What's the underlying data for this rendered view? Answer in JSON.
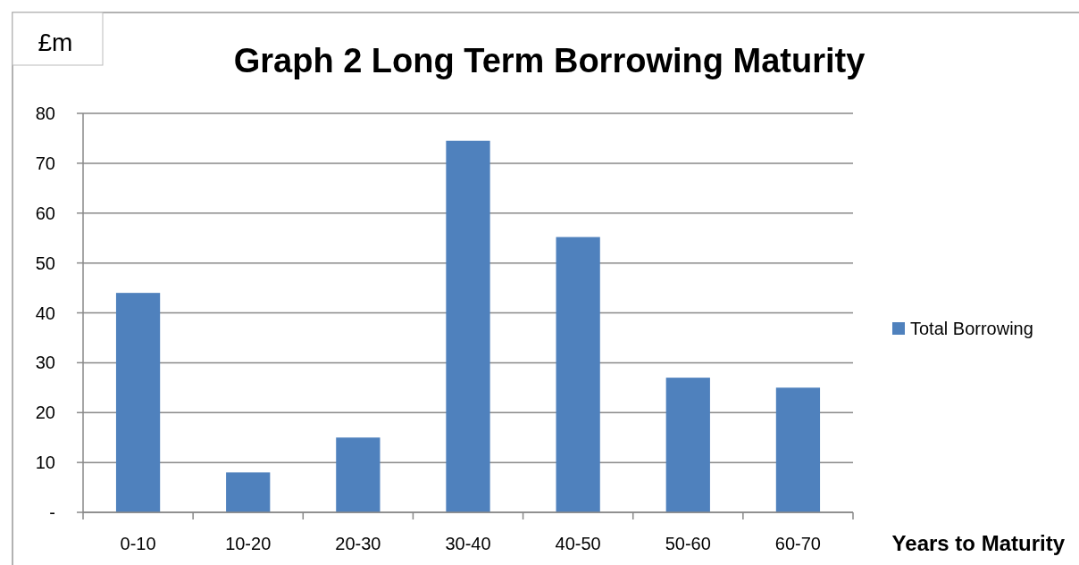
{
  "chart_data": {
    "type": "bar",
    "title": "Graph 2 Long Term Borrowing Maturity",
    "ylabel": "£m",
    "xlabel": "Years to Maturity",
    "categories": [
      "0-10",
      "10-20",
      "20-30",
      "30-40",
      "40-50",
      "50-60",
      "60-70"
    ],
    "series": [
      {
        "name": "Total Borrowing",
        "color": "#4f81bd",
        "values": [
          44,
          8,
          15,
          74.5,
          55.2,
          27,
          25
        ]
      }
    ],
    "ylim": [
      0,
      80
    ],
    "yticks": [
      {
        "value": 0,
        "label": "-"
      },
      10,
      20,
      30,
      40,
      50,
      60,
      70,
      80
    ],
    "grid": "y",
    "legend": "right"
  }
}
